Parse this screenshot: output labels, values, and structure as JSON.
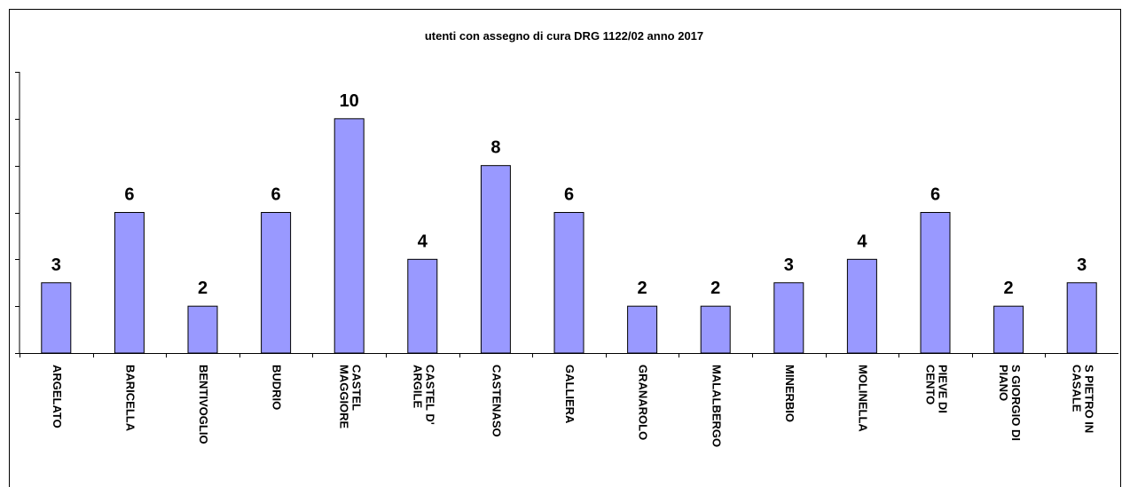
{
  "chart_data": {
    "type": "bar",
    "title": "utenti con assegno di cura DRG 1122/02 anno 2017",
    "categories": [
      "ARGELATO",
      "BARICELLA",
      "BENTIVOGLIO",
      "BUDRIO",
      "CASTEL MAGGIORE",
      "CASTEL D' ARGILE",
      "CASTENASO",
      "GALLIERA",
      "GRANAROLO",
      "MALALBERGO",
      "MINERBIO",
      "MOLINELLA",
      "PIEVE DI CENTO",
      "S GIORGIO DI PIANO",
      "S PIETRO IN CASALE"
    ],
    "values": [
      3,
      6,
      2,
      6,
      10,
      4,
      8,
      6,
      2,
      2,
      3,
      4,
      6,
      2,
      3
    ],
    "color": "#9999ff",
    "ylim": [
      0,
      12
    ],
    "yticks": [
      0,
      2,
      4,
      6,
      8,
      10,
      12
    ],
    "grid": false
  }
}
